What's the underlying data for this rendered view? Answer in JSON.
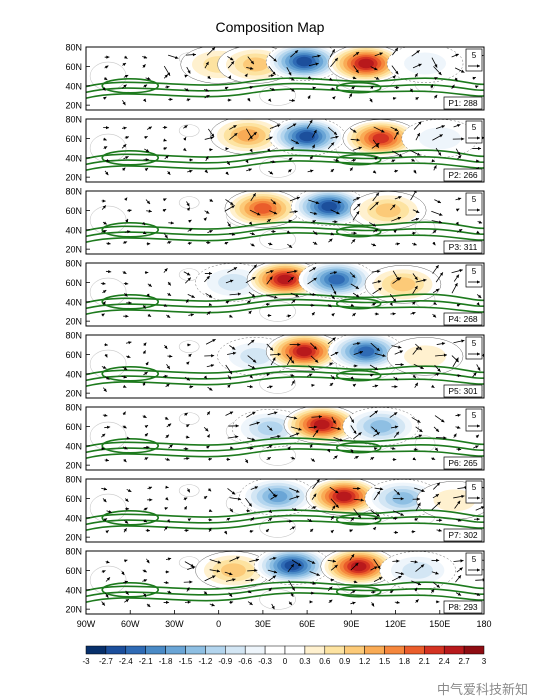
{
  "chart_data": {
    "type": "heatmap",
    "title": "Composition Map",
    "x_ticks": [
      "90W",
      "60W",
      "30W",
      "0",
      "30E",
      "60E",
      "90E",
      "120E",
      "150E",
      "180"
    ],
    "x_range": [
      -90,
      180
    ],
    "y_ticks": [
      "20N",
      "40N",
      "60N",
      "80N"
    ],
    "y_range": [
      15,
      80
    ],
    "reference_vector": "5",
    "colorbar": {
      "labels": [
        "-3",
        "-2.7",
        "-2.4",
        "-2.1",
        "-1.8",
        "-1.5",
        "-1.2",
        "-0.9",
        "-0.6",
        "-0.3",
        "0",
        "0.3",
        "0.6",
        "0.9",
        "1.2",
        "1.5",
        "1.8",
        "2.1",
        "2.4",
        "2.7",
        "3"
      ],
      "colors": [
        "#08306b",
        "#1c4f9c",
        "#2f6bb5",
        "#4a8ac6",
        "#6aa5d6",
        "#8ebfe3",
        "#b3d5ee",
        "#d3e6f4",
        "#eef5fb",
        "#ffffff",
        "#ffffff",
        "#fff1cf",
        "#fde3a1",
        "#fcca78",
        "#f9ab55",
        "#f5873d",
        "#ea5d2b",
        "#d43322",
        "#b8191c",
        "#8e0c12"
      ]
    },
    "panels": [
      {
        "label": "P1: 288",
        "anomalies": [
          {
            "lon": 0,
            "lat": 62,
            "value": 0.9
          },
          {
            "lon": 25,
            "lat": 62,
            "value": 1.2
          },
          {
            "lon": 58,
            "lat": 65,
            "value": -2.7
          },
          {
            "lon": 100,
            "lat": 63,
            "value": 2.7
          },
          {
            "lon": 140,
            "lat": 63,
            "value": -0.6
          }
        ]
      },
      {
        "label": "P2: 266",
        "anomalies": [
          {
            "lon": 20,
            "lat": 63,
            "value": 1.5
          },
          {
            "lon": 60,
            "lat": 62,
            "value": -2.7
          },
          {
            "lon": 110,
            "lat": 60,
            "value": 2.4
          },
          {
            "lon": 150,
            "lat": 60,
            "value": -0.6
          }
        ]
      },
      {
        "label": "P3: 311",
        "anomalies": [
          {
            "lon": 30,
            "lat": 62,
            "value": 2.1
          },
          {
            "lon": 75,
            "lat": 64,
            "value": -2.7
          },
          {
            "lon": 115,
            "lat": 60,
            "value": 1.2
          }
        ]
      },
      {
        "lon_note": "",
        "label": "P4: 268",
        "anomalies": [
          {
            "lon": 10,
            "lat": 60,
            "value": -0.9
          },
          {
            "lon": 45,
            "lat": 63,
            "value": 2.7
          },
          {
            "lon": 80,
            "lat": 63,
            "value": -2.4
          },
          {
            "lon": 125,
            "lat": 58,
            "value": 1.2
          }
        ]
      },
      {
        "label": "P5: 301",
        "anomalies": [
          {
            "lon": 25,
            "lat": 58,
            "value": -0.9
          },
          {
            "lon": 58,
            "lat": 63,
            "value": 2.7
          },
          {
            "lon": 100,
            "lat": 63,
            "value": -2.4
          },
          {
            "lon": 140,
            "lat": 58,
            "value": 0.6
          }
        ]
      },
      {
        "label": "P6: 265",
        "anomalies": [
          {
            "lon": 35,
            "lat": 58,
            "value": -1.2
          },
          {
            "lon": 70,
            "lat": 62,
            "value": 2.7
          },
          {
            "lon": 110,
            "lat": 60,
            "value": -1.5
          }
        ]
      },
      {
        "label": "P7: 302",
        "anomalies": [
          {
            "lon": 40,
            "lat": 62,
            "value": -1.8
          },
          {
            "lon": 85,
            "lat": 62,
            "value": 2.7
          },
          {
            "lon": 125,
            "lat": 60,
            "value": -1.5
          },
          {
            "lon": 160,
            "lat": 58,
            "value": 0.6
          }
        ]
      },
      {
        "label": "P8: 293",
        "anomalies": [
          {
            "lon": 10,
            "lat": 60,
            "value": 1.2
          },
          {
            "lon": 50,
            "lat": 65,
            "value": -2.7
          },
          {
            "lon": 95,
            "lat": 64,
            "value": 2.7
          },
          {
            "lon": 135,
            "lat": 60,
            "value": -0.9
          }
        ]
      }
    ]
  },
  "watermark": "中气爱科技新知"
}
